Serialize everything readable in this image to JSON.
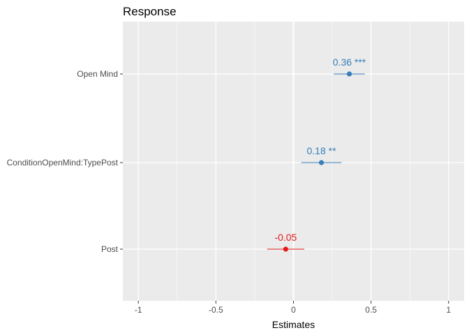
{
  "chart_data": {
    "type": "scatter",
    "title": "Response",
    "xlabel": "Estimates",
    "ylabel": "",
    "xlim": [
      -1.1,
      1.1
    ],
    "x_ticks": [
      -1,
      -0.5,
      0,
      0.5,
      1
    ],
    "x_tick_labels": [
      "-1",
      "-0.5",
      "0",
      "0.5",
      "1"
    ],
    "grid": true,
    "legend": "none",
    "terms": [
      {
        "term": "Open Mind",
        "estimate": 0.36,
        "ci_low": 0.26,
        "ci_high": 0.46,
        "label": "0.36 ***",
        "color": "#377eb8"
      },
      {
        "term": "ConditionOpenMind:TypePost",
        "estimate": 0.18,
        "ci_low": 0.05,
        "ci_high": 0.31,
        "label": "0.18 **",
        "color": "#377eb8"
      },
      {
        "term": "Post",
        "estimate": -0.05,
        "ci_low": -0.17,
        "ci_high": 0.07,
        "label": "-0.05",
        "color": "#e41a1c"
      }
    ],
    "colors": {
      "positive": "#377eb8",
      "negative": "#e41a1c",
      "panel": "#ebebeb",
      "grid": "#ffffff"
    }
  }
}
